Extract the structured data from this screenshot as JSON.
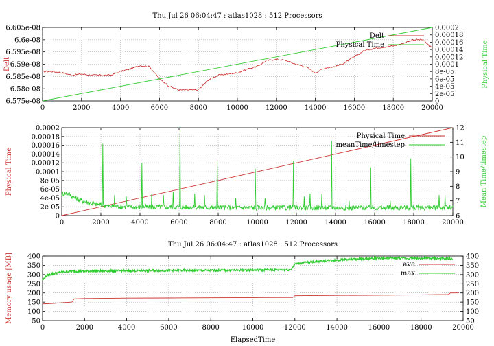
{
  "chart_data": [
    {
      "type": "line",
      "title": "Thu Jul 26 06:04:47 : atlas1028 : 512 Processors",
      "xlabel": "",
      "ylabel_left": "Delt",
      "ylabel_right": "Physical Time",
      "xlim": [
        0,
        20000
      ],
      "ylim_left": [
        6.575e-08,
        6.605e-08
      ],
      "ylim_right": [
        0,
        0.0002
      ],
      "xticks": [
        "0",
        "2000",
        "4000",
        "6000",
        "8000",
        "10000",
        "12000",
        "14000",
        "16000",
        "18000",
        "20000"
      ],
      "yticks_left": [
        "6.575e-08",
        "6.58e-08",
        "6.585e-08",
        "6.59e-08",
        "6.595e-08",
        "6.6e-08",
        "6.605e-08"
      ],
      "yticks_right": [
        "0",
        "2e-05",
        "4e-05",
        "6e-05",
        "8e-05",
        "0.0001",
        "0.00012",
        "0.00014",
        "0.00016",
        "0.00018",
        "0.0002"
      ],
      "grid": true,
      "legend_position": "top-right",
      "series": [
        {
          "name": "Delt",
          "axis": "left",
          "color": "#cc3333",
          "x": [
            0,
            500,
            1000,
            1500,
            2000,
            2500,
            3000,
            3500,
            4000,
            4500,
            5000,
            5500,
            6000,
            6500,
            7000,
            7500,
            8000,
            8500,
            9000,
            9500,
            10000,
            10500,
            11000,
            11500,
            12000,
            12500,
            13000,
            13500,
            14000,
            14500,
            15000,
            15500,
            16000,
            16500,
            17000,
            17500,
            18000,
            18500,
            19000,
            19500,
            20000
          ],
          "y": [
            6.587e-08,
            6.587e-08,
            6.5865e-08,
            6.5855e-08,
            6.586e-08,
            6.5855e-08,
            6.5855e-08,
            6.5855e-08,
            6.587e-08,
            6.588e-08,
            6.5895e-08,
            6.589e-08,
            6.584e-08,
            6.581e-08,
            6.5795e-08,
            6.5795e-08,
            6.5795e-08,
            6.5835e-08,
            6.5855e-08,
            6.586e-08,
            6.5865e-08,
            6.588e-08,
            6.589e-08,
            6.5915e-08,
            6.592e-08,
            6.5915e-08,
            6.59e-08,
            6.589e-08,
            6.5865e-08,
            6.5885e-08,
            6.589e-08,
            6.5905e-08,
            6.593e-08,
            6.5955e-08,
            6.5965e-08,
            6.597e-08,
            6.5975e-08,
            6.5985e-08,
            6.6e-08,
            6.6e-08,
            6.5965e-08
          ]
        },
        {
          "name": "Physical Time",
          "axis": "right",
          "color": "#33cc33",
          "x": [
            0,
            20000
          ],
          "y": [
            0,
            0.0002
          ]
        }
      ]
    },
    {
      "type": "line",
      "title": "",
      "xlabel": "",
      "ylabel_left": "Physical Time",
      "ylabel_right": "Mean Time/timestep",
      "xlim": [
        0,
        20000
      ],
      "ylim_left": [
        0,
        0.0002
      ],
      "ylim_right": [
        6,
        12
      ],
      "xticks": [
        "0",
        "2000",
        "4000",
        "6000",
        "8000",
        "10000",
        "12000",
        "14000",
        "16000",
        "18000",
        "20000"
      ],
      "yticks_left": [
        "0",
        "2e-05",
        "4e-05",
        "6e-05",
        "8e-05",
        "0.0001",
        "0.00012",
        "0.00014",
        "0.00016",
        "0.00018",
        "0.0002"
      ],
      "yticks_right": [
        "6",
        "7",
        "8",
        "9",
        "10",
        "11",
        "12"
      ],
      "grid": true,
      "legend_position": "top-right",
      "series": [
        {
          "name": "Physical Time",
          "axis": "left",
          "color": "#cc3333",
          "x": [
            0,
            20000
          ],
          "y": [
            0,
            0.0002
          ]
        },
        {
          "name": "meanTime/timestep",
          "axis": "right",
          "color": "#33cc33",
          "baseline": [
            [
              0,
              7.45
            ],
            [
              300,
              7.5
            ],
            [
              600,
              7.2
            ],
            [
              1000,
              7.0
            ],
            [
              1500,
              6.8
            ],
            [
              2500,
              6.6
            ],
            [
              4000,
              6.55
            ],
            [
              6000,
              6.55
            ],
            [
              9000,
              6.5
            ],
            [
              12000,
              6.5
            ],
            [
              20000,
              6.5
            ]
          ],
          "spikes": [
            [
              2100,
              10.9
            ],
            [
              4100,
              9.6
            ],
            [
              6050,
              11.8
            ],
            [
              7950,
              9.8
            ],
            [
              9900,
              9.2
            ],
            [
              11850,
              9.7
            ],
            [
              13800,
              11.1
            ],
            [
              15800,
              9.3
            ],
            [
              17850,
              9.9
            ],
            [
              2700,
              7.4
            ],
            [
              3300,
              7.3
            ],
            [
              4600,
              7.5
            ],
            [
              5200,
              7.4
            ],
            [
              5700,
              7.6
            ],
            [
              6800,
              7.5
            ],
            [
              7300,
              7.4
            ],
            [
              8900,
              7.2
            ],
            [
              10400,
              7.2
            ],
            [
              12400,
              7.3
            ],
            [
              12700,
              7.5
            ],
            [
              13300,
              7.5
            ],
            [
              14700,
              7.0
            ],
            [
              16800,
              7.0
            ],
            [
              19300,
              7.4
            ],
            [
              19600,
              7.4
            ]
          ]
        }
      ]
    },
    {
      "type": "line",
      "title": "Thu Jul 26 06:04:47 : atlas1028 : 512 Processors",
      "xlabel": "ElapsedTime",
      "ylabel_left": "Memory usage [MB]",
      "ylabel_right": "",
      "xlim": [
        0,
        20000
      ],
      "ylim_left": [
        50,
        400
      ],
      "ylim_right": [
        50,
        400
      ],
      "xticks": [
        "0",
        "2000",
        "4000",
        "6000",
        "8000",
        "10000",
        "12000",
        "14000",
        "16000",
        "18000",
        "20000"
      ],
      "yticks_left": [
        "50",
        "100",
        "150",
        "200",
        "250",
        "300",
        "350",
        "400"
      ],
      "yticks_right": [
        "50",
        "100",
        "150",
        "200",
        "250",
        "300",
        "350",
        "400"
      ],
      "grid": true,
      "legend_position": "top-right",
      "series": [
        {
          "name": "ave",
          "axis": "left",
          "color": "#cc3333",
          "x": [
            0,
            500,
            1000,
            1400,
            1500,
            2000,
            4000,
            6000,
            8000,
            10000,
            11900,
            12000,
            14000,
            16000,
            18000,
            19300,
            19400,
            19800
          ],
          "y": [
            140,
            143,
            147,
            150,
            168,
            170,
            172,
            173,
            174,
            175,
            176,
            185,
            187,
            188,
            190,
            192,
            200,
            200
          ]
        },
        {
          "name": "max",
          "axis": "left",
          "color": "#33cc33",
          "x": [
            0,
            200,
            500,
            1000,
            1500,
            2000,
            4000,
            6000,
            8000,
            10000,
            11800,
            11900,
            12000,
            12500,
            13500,
            14500,
            16000,
            18000,
            19500
          ],
          "y": [
            270,
            295,
            305,
            315,
            318,
            318,
            320,
            322,
            322,
            324,
            326,
            340,
            358,
            365,
            375,
            382,
            388,
            388,
            385
          ]
        }
      ]
    }
  ]
}
